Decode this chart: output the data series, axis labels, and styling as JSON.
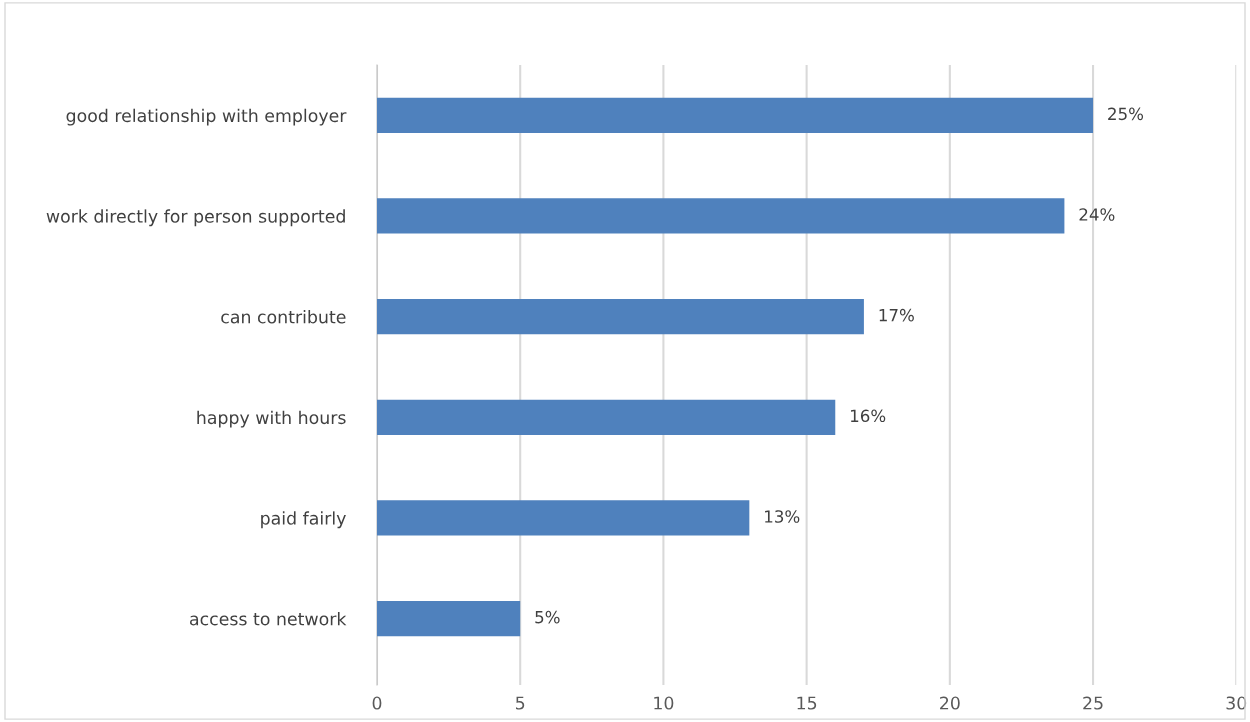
{
  "chart_data": {
    "type": "bar",
    "orientation": "horizontal",
    "categories": [
      "good relationship with employer",
      "work directly for person supported",
      "can contribute",
      "happy with hours",
      "paid fairly",
      "access to network"
    ],
    "values": [
      25,
      24,
      17,
      16,
      13,
      5
    ],
    "value_labels": [
      "25%",
      "24%",
      "17%",
      "16%",
      "13%",
      "5%"
    ],
    "color": "#4f81bd",
    "xlim": [
      0,
      30
    ],
    "xticks": [
      0,
      5,
      10,
      15,
      20,
      25,
      30
    ],
    "grid": "x",
    "legend": false
  }
}
